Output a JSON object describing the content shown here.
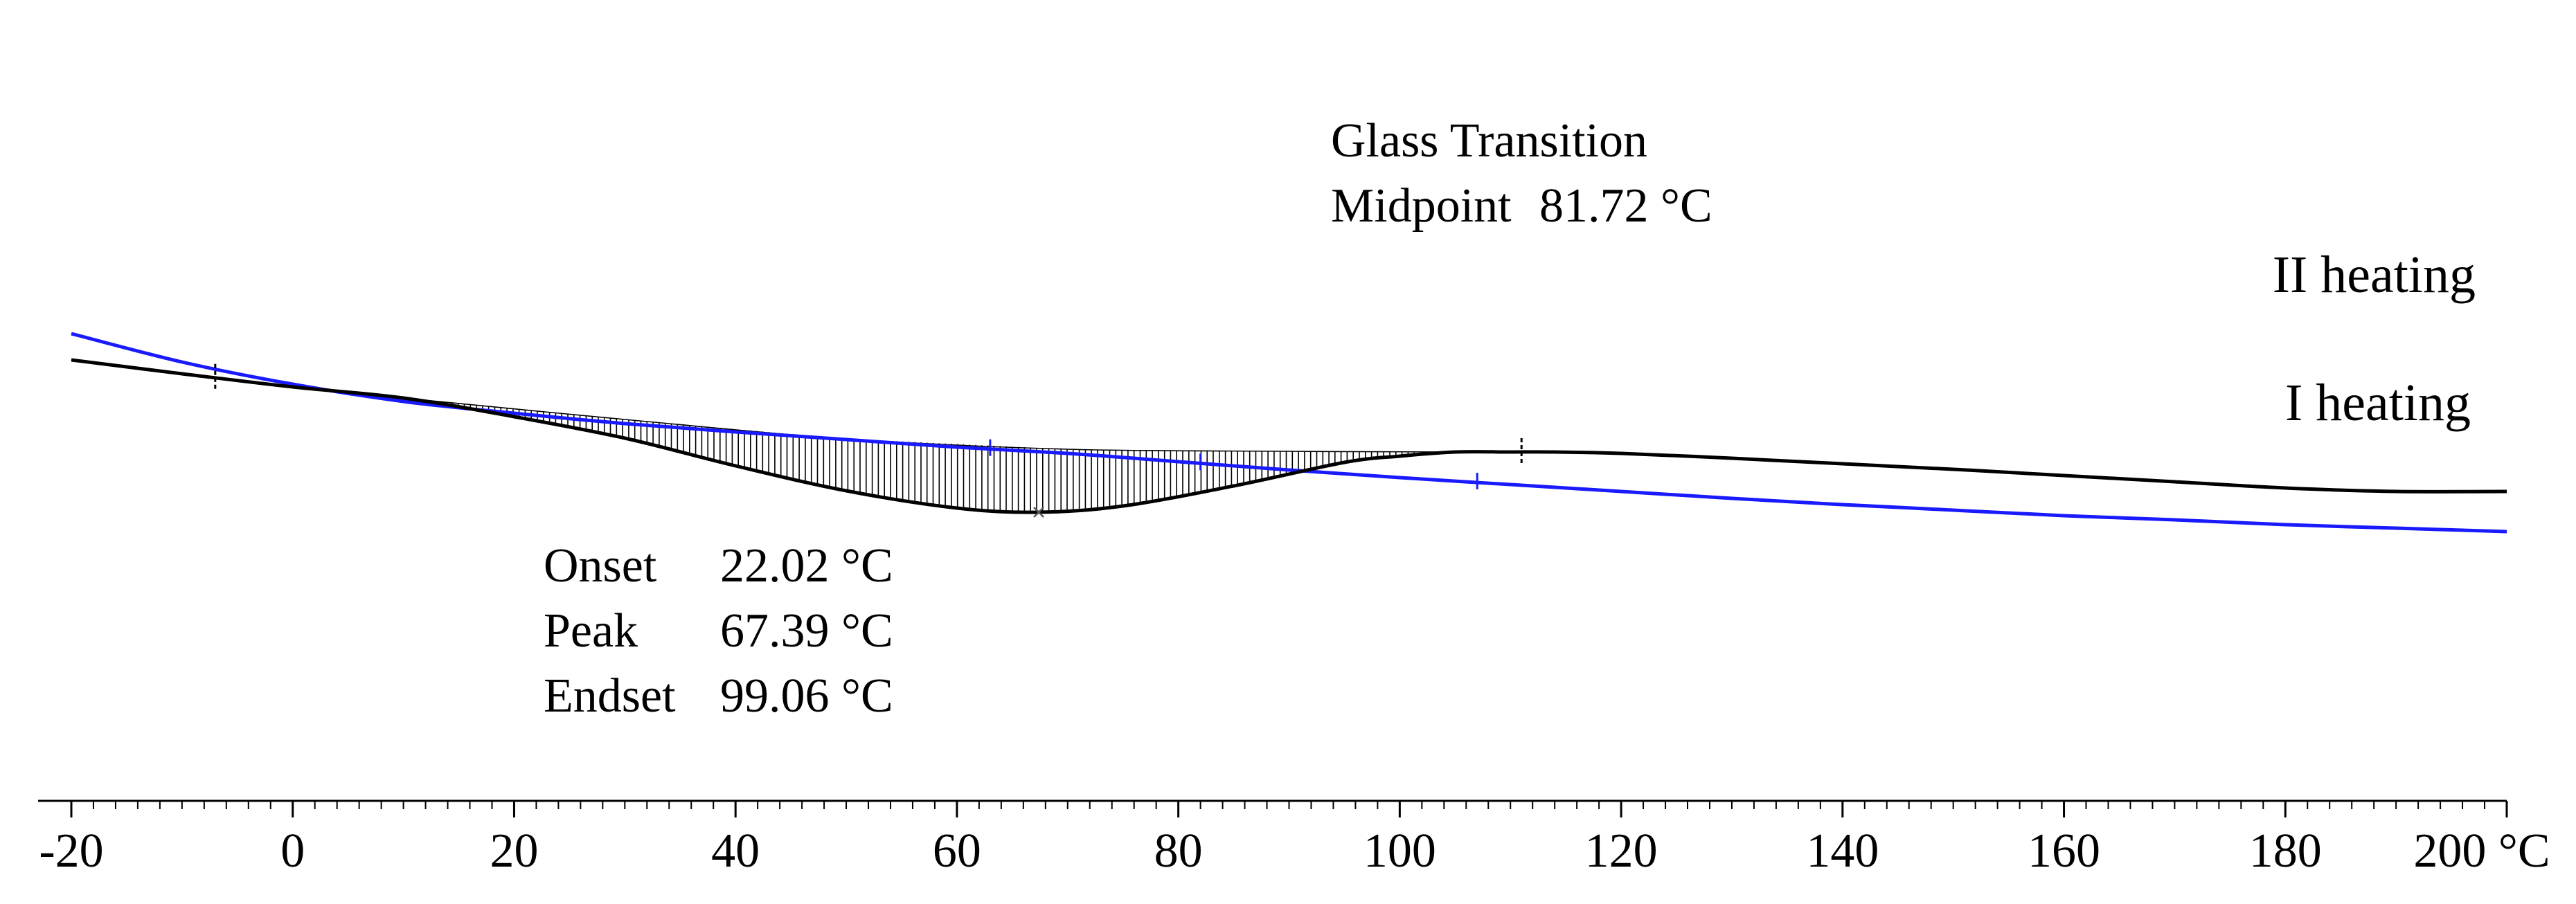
{
  "chart_data": {
    "type": "line",
    "title": "",
    "xlabel": "",
    "ylabel": "",
    "x_unit": "°C",
    "xlim": [
      -20,
      200
    ],
    "x_major_step": 20,
    "x_minor_step": 2,
    "tick_labels": [
      "-20",
      "0",
      "20",
      "40",
      "60",
      "80",
      "100",
      "120",
      "140",
      "160",
      "180",
      "200 °C"
    ],
    "legend": "inline-right",
    "grid": false,
    "series": [
      {
        "name": "II heating",
        "color": "#1a1aff",
        "x": [
          -20,
          -10,
          0,
          10,
          20,
          30,
          40,
          50,
          60,
          70,
          80,
          90,
          100,
          110,
          120,
          130,
          140,
          150,
          160,
          170,
          180,
          190,
          200
        ],
        "y": [
          -93,
          -52,
          -20,
          5,
          22,
          37,
          49,
          60,
          71,
          80,
          92,
          104,
          115,
          125,
          135,
          145,
          154,
          162,
          170,
          176,
          183,
          188,
          193
        ]
      },
      {
        "name": "I heating",
        "color": "#000000",
        "x": [
          -20,
          -10,
          0,
          10,
          20,
          30,
          40,
          50,
          60,
          67.39,
          75,
          85,
          95,
          100,
          105,
          110,
          114,
          120,
          130,
          140,
          150,
          160,
          170,
          180,
          190,
          200
        ],
        "y": [
          -55,
          -35,
          -16,
          0,
          27,
          58,
          98,
          134,
          159,
          165,
          156,
          127,
          93,
          84,
          78,
          78,
          78,
          80,
          87,
          95,
          103,
          112,
          121,
          130,
          135,
          135
        ]
      }
    ],
    "peak_area": {
      "series": "I heating",
      "from_x": 10,
      "to_x": 105,
      "baseline": [
        [
          10,
          0
        ],
        [
          30,
          31
        ],
        [
          50,
          59
        ],
        [
          70,
          74
        ],
        [
          90,
          77
        ],
        [
          105,
          78
        ]
      ]
    },
    "annotations": {
      "glass_transition": {
        "title": "Glass Transition",
        "midpoint_label": "Midpoint",
        "midpoint_value": "81.72 °C",
        "marker_x": [
          63,
          82,
          107
        ]
      },
      "peak_analysis": {
        "rows": [
          {
            "label": "Onset",
            "value": "22.02 °C"
          },
          {
            "label": "Peak",
            "value": "67.39 °C"
          },
          {
            "label": "Endset",
            "value": "99.06 °C"
          }
        ],
        "limit_markers_x": [
          -7,
          111
        ]
      }
    }
  }
}
